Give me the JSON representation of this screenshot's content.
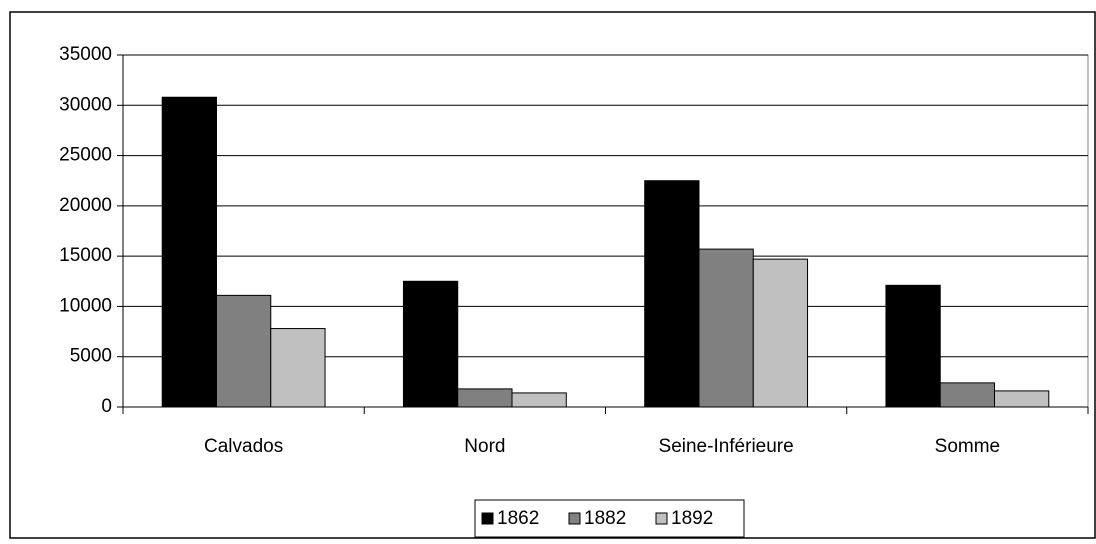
{
  "chart_data": {
    "type": "bar",
    "categories": [
      "Calvados",
      "Nord",
      "Seine-Inférieure",
      "Somme"
    ],
    "series": [
      {
        "name": "1862",
        "color": "#000000",
        "values": [
          30800,
          12500,
          22500,
          12100
        ]
      },
      {
        "name": "1882",
        "color": "#808080",
        "values": [
          11100,
          1800,
          15700,
          2400
        ]
      },
      {
        "name": "1892",
        "color": "#c0c0c0",
        "values": [
          7800,
          1400,
          14700,
          1600
        ]
      }
    ],
    "ylim": [
      0,
      35000
    ],
    "yticks": [
      0,
      5000,
      10000,
      15000,
      20000,
      25000,
      30000,
      35000
    ],
    "grid": true,
    "legend": "bottom"
  }
}
